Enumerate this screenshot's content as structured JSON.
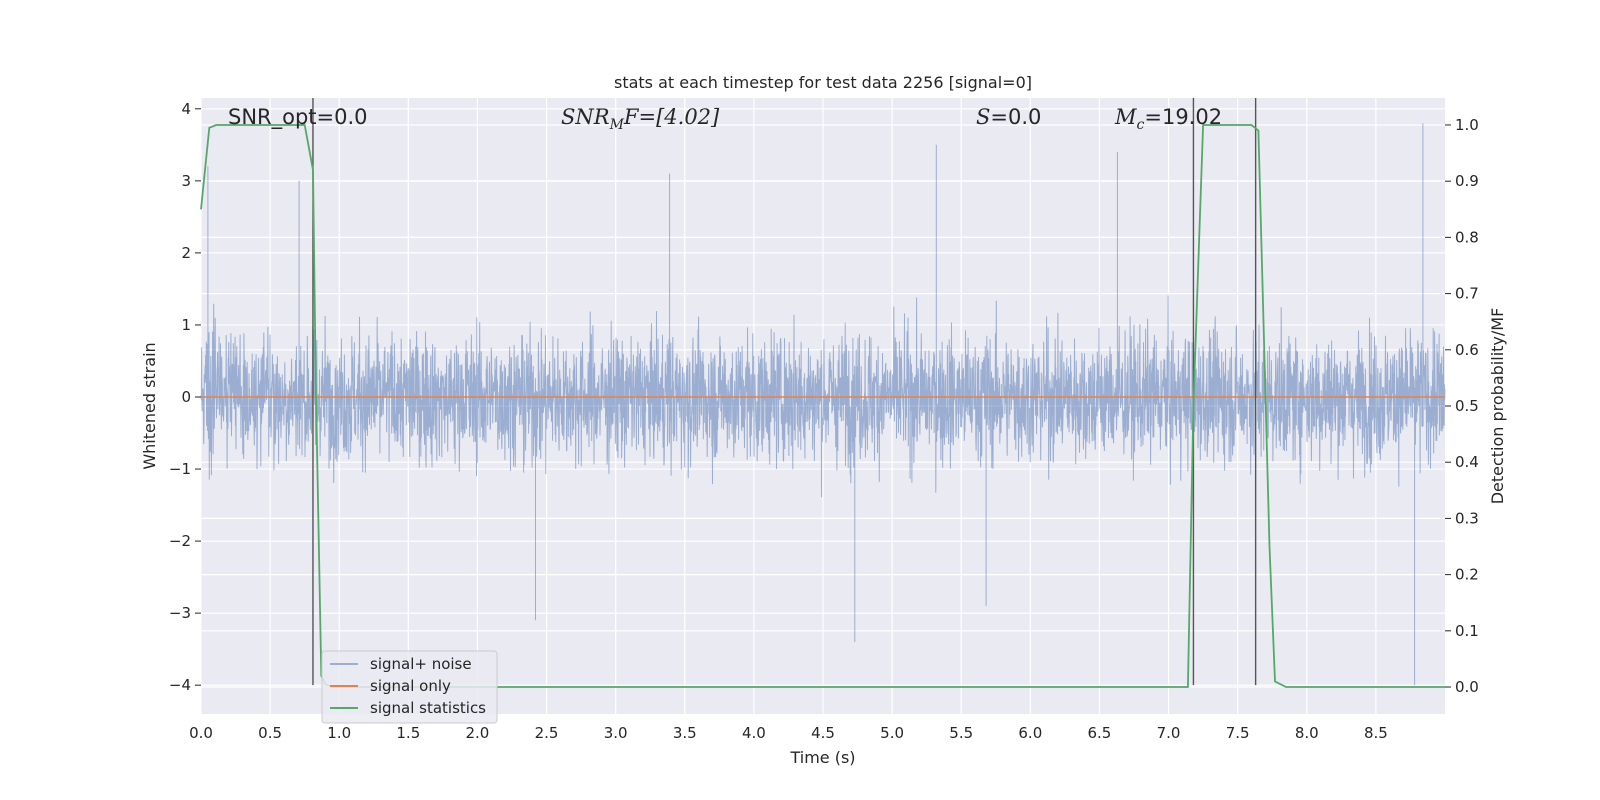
{
  "chart_data": {
    "type": "line",
    "title": "stats at each timestep for test data 2256 [signal=0]",
    "xlabel": "Time (s)",
    "ylabel": "Whitened strain",
    "y2label": "Detection probability/MF",
    "xlim": [
      0.0,
      9.0
    ],
    "ylim": [
      -4.4,
      4.15
    ],
    "y2lim": [
      -0.048,
      1.048
    ],
    "x_ticks": [
      "0.0",
      "0.5",
      "1.0",
      "1.5",
      "2.0",
      "2.5",
      "3.0",
      "3.5",
      "4.0",
      "4.5",
      "5.0",
      "5.5",
      "6.0",
      "6.5",
      "7.0",
      "7.5",
      "8.0",
      "8.5"
    ],
    "y_ticks": [
      "4",
      "3",
      "2",
      "1",
      "0",
      "−1",
      "−2",
      "−3",
      "−4"
    ],
    "y2_ticks": [
      "1.0",
      "0.9",
      "0.8",
      "0.7",
      "0.6",
      "0.5",
      "0.4",
      "0.3",
      "0.2",
      "0.1",
      "0.0"
    ],
    "grid": true,
    "background": "#eaeaf2",
    "annotations": {
      "snr_opt": "SNR_opt=0.0",
      "snr_mf_base": "SNR",
      "snr_mf_sub": "M",
      "snr_mf_rest": "F=[4.02]",
      "s_base": "S",
      "s_rest": "=0.0",
      "mc_base": "M",
      "mc_sub": "c",
      "mc_rest": "=19.02"
    },
    "series": [
      {
        "name": "signal+ noise",
        "color": "#4c72b0",
        "description_values": "whitened noise, approx. within [-2, 2] with peaks to 3.8 / -4.0",
        "peaks": [
          {
            "x": 0.05,
            "y": 3.2
          },
          {
            "x": 0.71,
            "y": 3.0
          },
          {
            "x": 3.39,
            "y": 3.1
          },
          {
            "x": 5.32,
            "y": 3.5
          },
          {
            "x": 6.63,
            "y": 3.4
          },
          {
            "x": 8.84,
            "y": 3.8
          },
          {
            "x": 2.42,
            "y": -3.1
          },
          {
            "x": 4.73,
            "y": -3.4
          },
          {
            "x": 5.68,
            "y": -2.9
          },
          {
            "x": 8.78,
            "y": -4.0
          }
        ]
      },
      {
        "name": "signal only",
        "color": "#dd8452",
        "x": [
          0.0,
          9.0
        ],
        "y": [
          0.0,
          0.0
        ]
      },
      {
        "name": "signal statistics",
        "color": "#55a868",
        "axis": "right",
        "x": [
          0.0,
          0.06,
          0.11,
          0.75,
          0.81,
          0.83,
          0.87,
          0.9,
          0.95,
          7.14,
          7.18,
          7.25,
          7.31,
          7.6,
          7.65,
          7.73,
          7.77,
          7.85,
          9.0
        ],
        "y": [
          0.85,
          0.995,
          1.0,
          1.0,
          0.92,
          0.55,
          0.02,
          0.005,
          0.0,
          0.0,
          0.5,
          1.0,
          1.0,
          1.0,
          0.99,
          0.25,
          0.01,
          0.0,
          0.0
        ]
      }
    ],
    "vertical_lines_x": [
      0.81,
      7.18,
      7.63
    ],
    "legend": {
      "placement": "lower-left",
      "entries": [
        "signal+ noise",
        "signal only",
        "signal statistics"
      ]
    }
  }
}
